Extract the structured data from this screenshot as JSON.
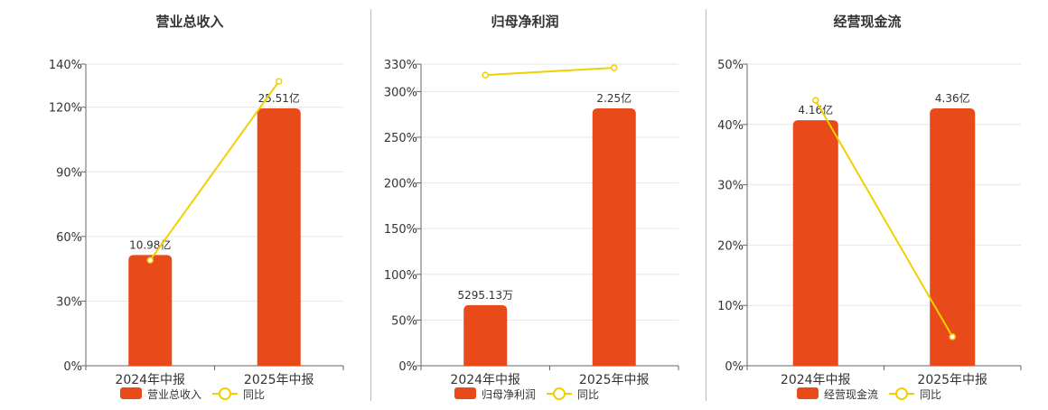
{
  "chart_data": [
    {
      "type": "bar",
      "title": "营业总收入",
      "categories": [
        "2024年中报",
        "2025年中报"
      ],
      "bar_series": {
        "name": "营业总收入",
        "values": [
          10.98,
          25.51
        ],
        "labels": [
          "10.98亿",
          "25.51亿"
        ],
        "color": "#e84a1a"
      },
      "line_series": {
        "name": "同比",
        "values": [
          49,
          132
        ],
        "color": "#f0d000"
      },
      "y_ticks": [
        "0%",
        "30%",
        "60%",
        "90%",
        "120%",
        "140%"
      ],
      "ylim": [
        0,
        140
      ]
    },
    {
      "type": "bar",
      "title": "归母净利润",
      "categories": [
        "2024年中报",
        "2025年中报"
      ],
      "bar_series": {
        "name": "归母净利润",
        "values": [
          0.5295,
          2.25
        ],
        "labels": [
          "5295.13万",
          "2.25亿"
        ],
        "color": "#e84a1a"
      },
      "line_series": {
        "name": "同比",
        "values": [
          318,
          326
        ],
        "color": "#f0d000"
      },
      "y_ticks": [
        "0%",
        "50%",
        "100%",
        "150%",
        "200%",
        "250%",
        "300%",
        "330%"
      ],
      "ylim": [
        0,
        330
      ]
    },
    {
      "type": "bar",
      "title": "经营现金流",
      "categories": [
        "2024年中报",
        "2025年中报"
      ],
      "bar_series": {
        "name": "经营现金流",
        "values": [
          4.16,
          4.36
        ],
        "labels": [
          "4.16亿",
          "4.36亿"
        ],
        "color": "#e84a1a"
      },
      "line_series": {
        "name": "同比",
        "values": [
          44,
          4.8
        ],
        "color": "#f0d000"
      },
      "y_ticks": [
        "0%",
        "10%",
        "20%",
        "30%",
        "40%",
        "50%"
      ],
      "ylim": [
        0,
        50
      ]
    }
  ]
}
